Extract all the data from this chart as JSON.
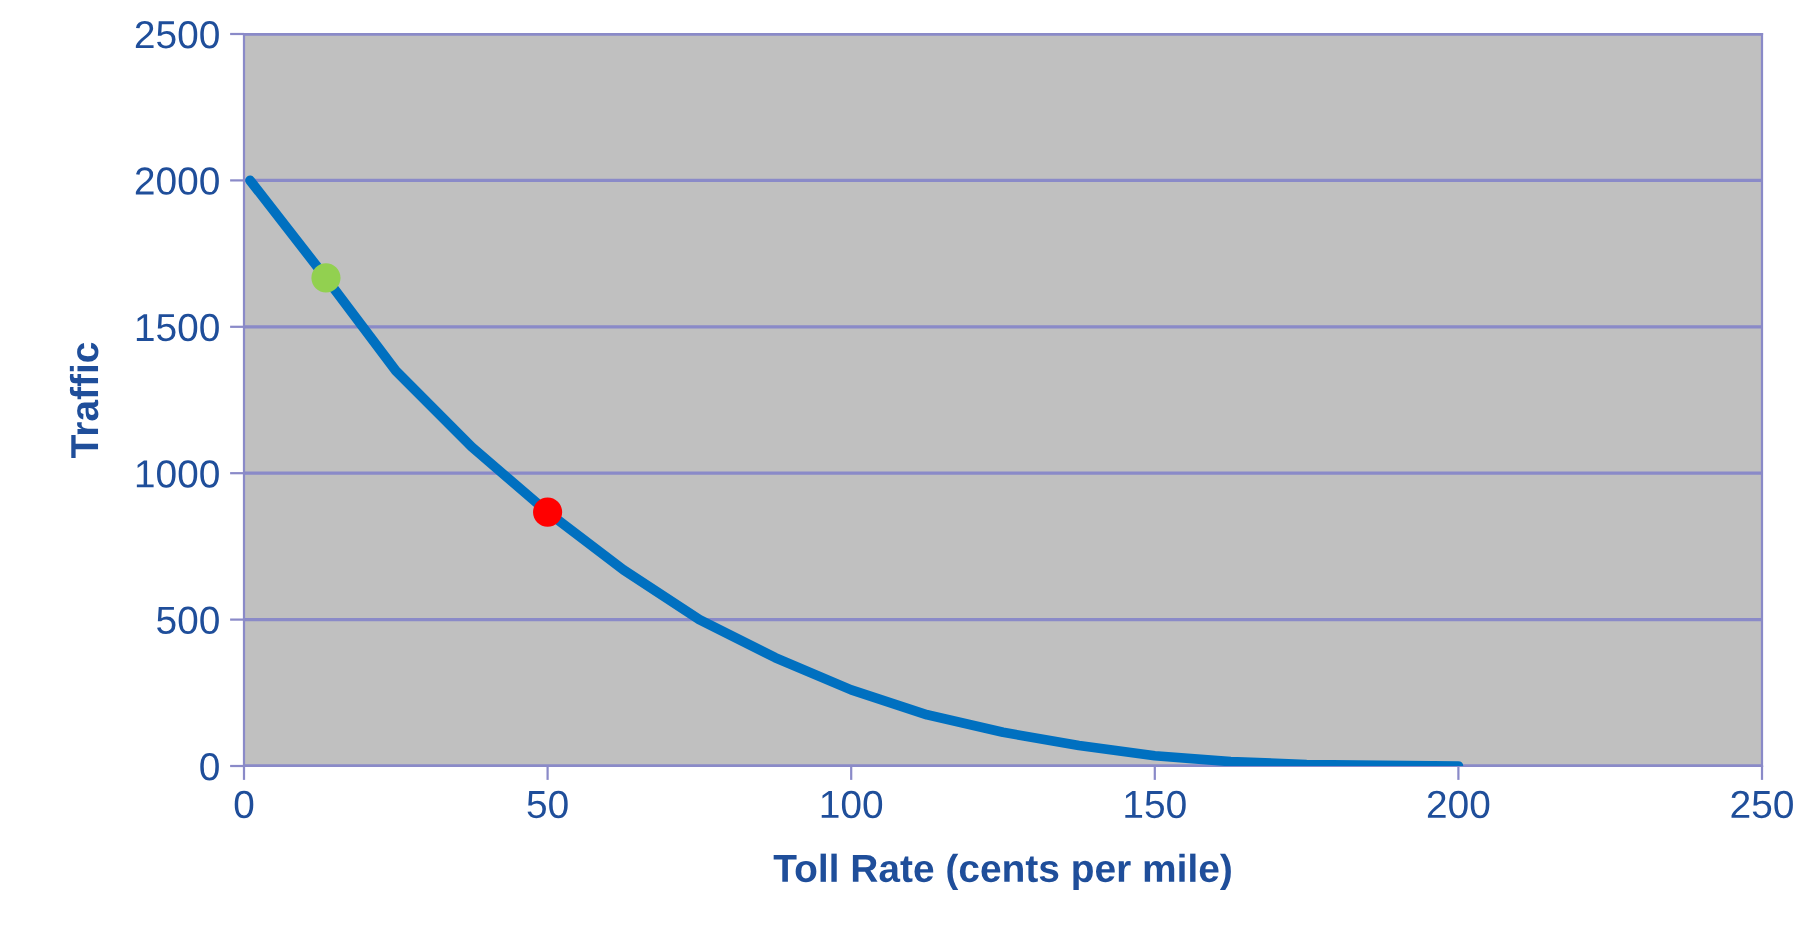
{
  "chart_data": {
    "type": "line",
    "xlabel": "Toll Rate (cents per mile)",
    "ylabel": "Traffic",
    "series": [
      {
        "color": "#0070c0",
        "marker": "none",
        "x": [
          1,
          13.5,
          25,
          37.5,
          50,
          62.5,
          75,
          87.5,
          100,
          112.5,
          125,
          137.5,
          150,
          162.5,
          175,
          187.5,
          200
        ],
        "values": [
          2000,
          1667,
          1350,
          1090,
          867,
          670,
          500,
          370,
          260,
          175,
          115,
          70,
          35,
          15,
          5,
          2,
          0
        ]
      },
      {
        "type": "scatter",
        "marker": "circle",
        "color": "#92d050",
        "x": [
          13.5
        ],
        "values": [
          1667
        ]
      },
      {
        "type": "scatter",
        "marker": "circle",
        "color": "#ff0000",
        "x": [
          50
        ],
        "values": [
          867
        ]
      }
    ],
    "xlim": [
      0,
      250
    ],
    "xticks": [
      0,
      50,
      100,
      150,
      200,
      250
    ],
    "ylim": [
      0,
      2500
    ],
    "yticks": [
      0,
      500,
      1000,
      1500,
      2000,
      2500
    ],
    "grid": "y",
    "line_style": "solid"
  }
}
